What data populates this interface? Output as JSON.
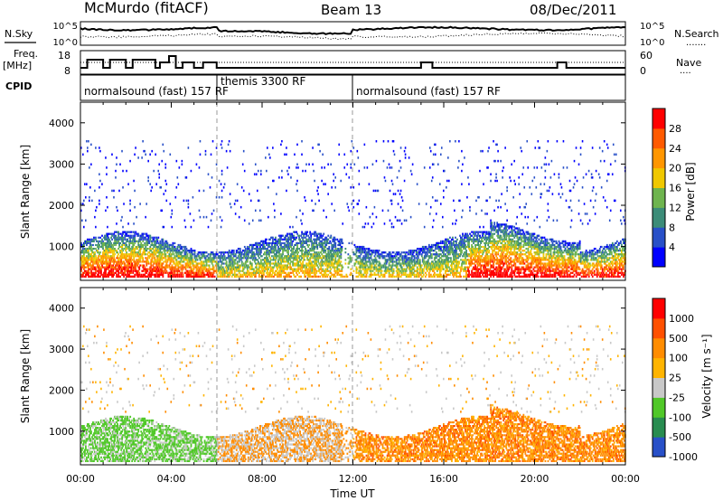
{
  "header": {
    "station": "McMurdo (fitACF)",
    "beam": "Beam 13",
    "date": "08/Dec/2011"
  },
  "noise_panel": {
    "left_label": "N.Sky",
    "left_ticks": [
      "10^5",
      "10^0"
    ],
    "right_ticks": [
      "10^5",
      "10^0"
    ],
    "right_label": "N.Search",
    "right_legend": "......."
  },
  "freq_panel": {
    "left_label_1": "Freq.",
    "left_label_2": "[MHz]",
    "left_ticks": [
      "18",
      "8"
    ],
    "right_ticks": [
      "60",
      "0"
    ],
    "right_label": "Nave",
    "right_legend": "...."
  },
  "cpid_panel": {
    "label": "CPID",
    "segments": [
      {
        "text": "normalsound (fast) 157 RF",
        "start_hr": 0
      },
      {
        "text": "themis 3300 RF",
        "start_hr": 6
      },
      {
        "text": "normalsound (fast) 157 RF",
        "start_hr": 12
      }
    ]
  },
  "colors": {
    "power": [
      "#0000ff",
      "#2850c8",
      "#3c8c78",
      "#6eb44e",
      "#f0c800",
      "#ff9600",
      "#ff5a00",
      "#ff0000"
    ],
    "velocity": [
      "#ff0000",
      "#ff5000",
      "#ff8c00",
      "#ffb400",
      "#c8c8c8",
      "#50c828",
      "#288c50",
      "#2850c8"
    ]
  },
  "chart_data": [
    {
      "type": "heatmap",
      "name": "power",
      "xlabel": "",
      "ylabel": "Slant Range [km]",
      "xlim": [
        0,
        24
      ],
      "ylim": [
        180,
        4500
      ],
      "yticks": [
        "1000",
        "2000",
        "3000",
        "4000"
      ],
      "colorbar": {
        "label": "Power [dB]",
        "ticks": [
          "4",
          "8",
          "12",
          "16",
          "20",
          "24",
          "28"
        ]
      }
    },
    {
      "type": "heatmap",
      "name": "velocity",
      "xlabel": "Time UT",
      "ylabel": "Slant Range [km]",
      "xlim": [
        0,
        24
      ],
      "ylim": [
        180,
        4500
      ],
      "xticks": [
        "00:00",
        "04:00",
        "08:00",
        "12:00",
        "16:00",
        "20:00",
        "00:00"
      ],
      "yticks": [
        "1000",
        "2000",
        "3000",
        "4000"
      ],
      "colorbar": {
        "label": "Velocity [m s⁻¹]",
        "ticks": [
          "1000",
          "500",
          "100",
          "25",
          "-25",
          "-100",
          "-500",
          "-1000"
        ]
      }
    }
  ]
}
